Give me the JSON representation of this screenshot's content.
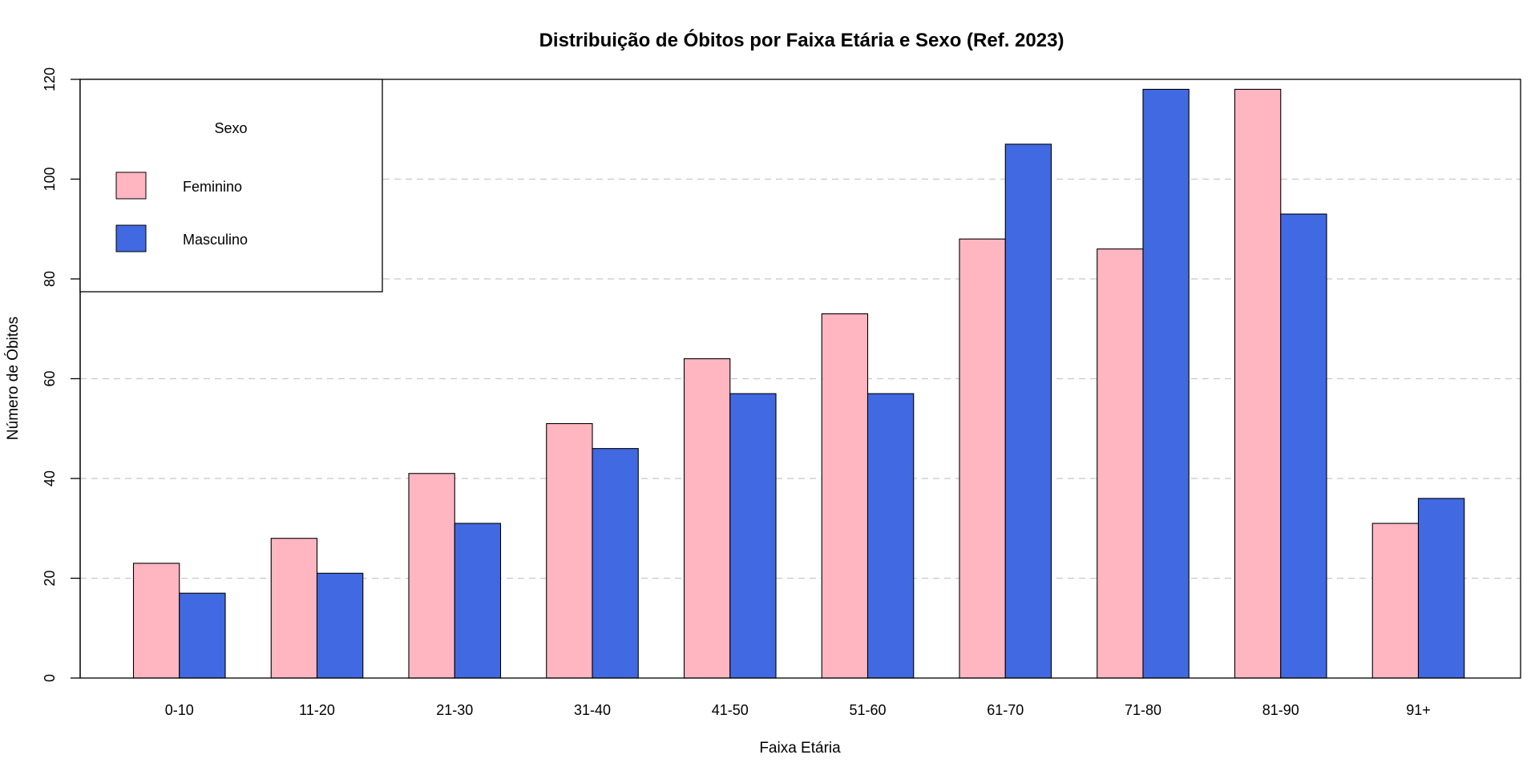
{
  "chart_data": {
    "type": "bar",
    "title": "Distribuição de Óbitos por Faixa Etária e Sexo (Ref. 2023)",
    "xlabel": "Faixa Etária",
    "ylabel": "Número de Óbitos",
    "categories": [
      "0-10",
      "11-20",
      "21-30",
      "31-40",
      "41-50",
      "51-60",
      "61-70",
      "71-80",
      "81-90",
      "91+"
    ],
    "series": [
      {
        "name": "Feminino",
        "color": "#FFB6C1",
        "values": [
          23,
          28,
          41,
          51,
          64,
          73,
          88,
          86,
          118,
          31
        ]
      },
      {
        "name": "Masculino",
        "color": "#4169E1",
        "values": [
          17,
          21,
          31,
          46,
          57,
          57,
          107,
          118,
          93,
          36
        ]
      }
    ],
    "ylim": [
      0,
      120
    ],
    "yticks": [
      0,
      20,
      40,
      60,
      80,
      100,
      120
    ],
    "grid": "horizontal dashed",
    "legend": {
      "title": "Sexo",
      "position": "top-left"
    }
  }
}
